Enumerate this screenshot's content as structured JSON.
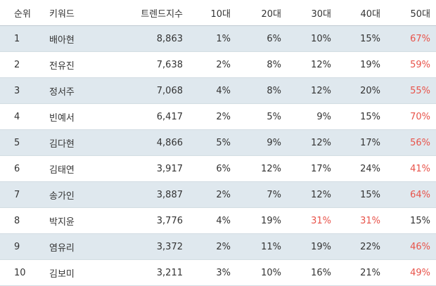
{
  "headers": [
    "순위",
    "키워드",
    "트렌드지수",
    "10대",
    "20대",
    "30대",
    "40대",
    "50대"
  ],
  "highlight_color": "#e8534a",
  "rows": [
    {
      "rank": "1",
      "keyword": "배아현",
      "index": "8,863",
      "a10": "1%",
      "a20": "6%",
      "a30": "10%",
      "a40": "15%",
      "a50": "67%",
      "hl": [
        "a50"
      ]
    },
    {
      "rank": "2",
      "keyword": "전유진",
      "index": "7,638",
      "a10": "2%",
      "a20": "8%",
      "a30": "12%",
      "a40": "19%",
      "a50": "59%",
      "hl": [
        "a50"
      ]
    },
    {
      "rank": "3",
      "keyword": "정서주",
      "index": "7,068",
      "a10": "4%",
      "a20": "8%",
      "a30": "12%",
      "a40": "20%",
      "a50": "55%",
      "hl": [
        "a50"
      ]
    },
    {
      "rank": "4",
      "keyword": "빈예서",
      "index": "6,417",
      "a10": "2%",
      "a20": "5%",
      "a30": "9%",
      "a40": "15%",
      "a50": "70%",
      "hl": [
        "a50"
      ]
    },
    {
      "rank": "5",
      "keyword": "김다현",
      "index": "4,866",
      "a10": "5%",
      "a20": "9%",
      "a30": "12%",
      "a40": "17%",
      "a50": "56%",
      "hl": [
        "a50"
      ]
    },
    {
      "rank": "6",
      "keyword": "김태연",
      "index": "3,917",
      "a10": "6%",
      "a20": "12%",
      "a30": "17%",
      "a40": "24%",
      "a50": "41%",
      "hl": [
        "a50"
      ]
    },
    {
      "rank": "7",
      "keyword": "송가인",
      "index": "3,887",
      "a10": "2%",
      "a20": "7%",
      "a30": "12%",
      "a40": "15%",
      "a50": "64%",
      "hl": [
        "a50"
      ]
    },
    {
      "rank": "8",
      "keyword": "박지윤",
      "index": "3,776",
      "a10": "4%",
      "a20": "19%",
      "a30": "31%",
      "a40": "31%",
      "a50": "15%",
      "hl": [
        "a30",
        "a40"
      ]
    },
    {
      "rank": "9",
      "keyword": "염유리",
      "index": "3,372",
      "a10": "2%",
      "a20": "11%",
      "a30": "19%",
      "a40": "22%",
      "a50": "46%",
      "hl": [
        "a50"
      ]
    },
    {
      "rank": "10",
      "keyword": "김보미",
      "index": "3,211",
      "a10": "3%",
      "a20": "10%",
      "a30": "16%",
      "a40": "21%",
      "a50": "49%",
      "hl": [
        "a50"
      ]
    }
  ]
}
